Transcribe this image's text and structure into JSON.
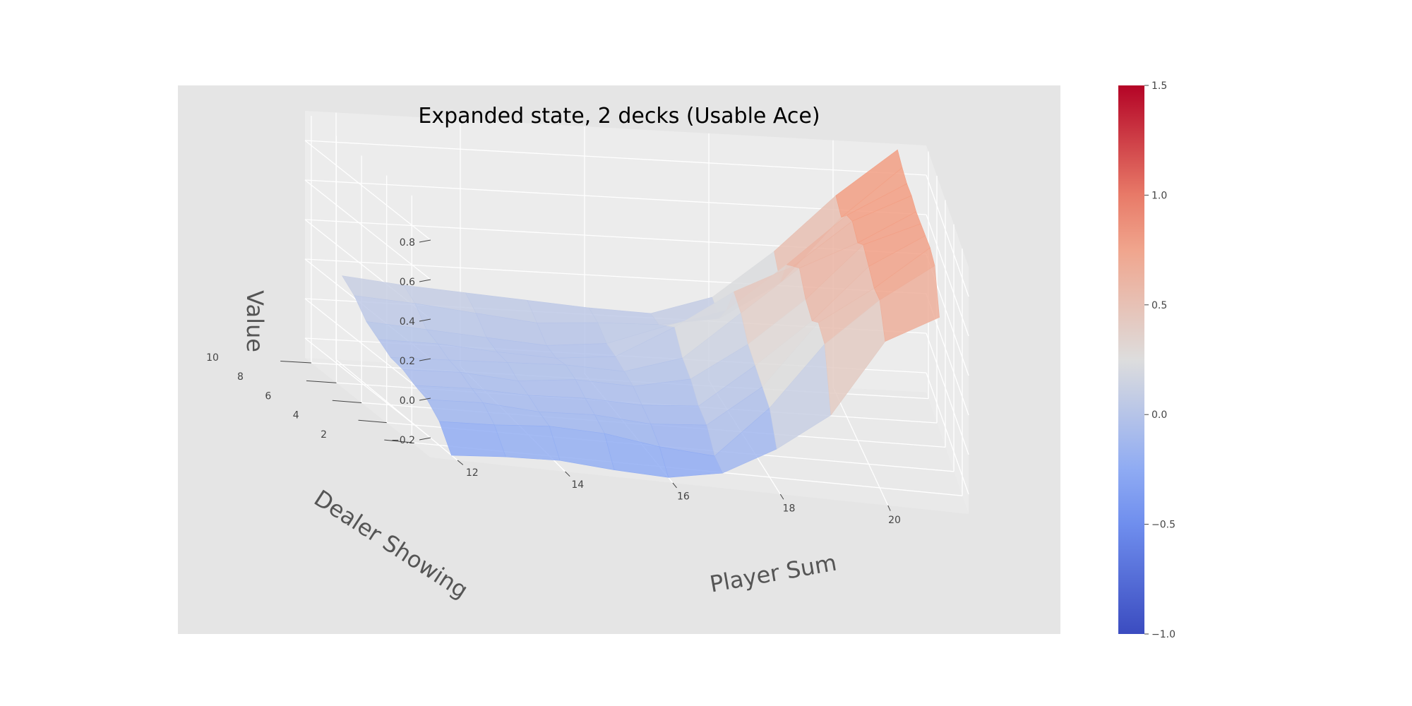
{
  "chart_data": {
    "type": "surface3d",
    "title": "Expanded state, 2 decks (Usable Ace)",
    "xlabel": "Player Sum",
    "ylabel": "Dealer Showing",
    "zlabel": "Value",
    "x": [
      12,
      13,
      14,
      15,
      16,
      17,
      18,
      19,
      20,
      21
    ],
    "y": [
      1,
      2,
      3,
      4,
      5,
      6,
      7,
      8,
      9,
      10
    ],
    "z": [
      [
        -0.3,
        -0.28,
        -0.27,
        -0.29,
        -0.3,
        -0.25,
        -0.1,
        0.1,
        0.5,
        0.65
      ],
      [
        -0.18,
        -0.17,
        -0.15,
        -0.16,
        -0.2,
        -0.22,
        0.05,
        0.4,
        0.65,
        0.85
      ],
      [
        -0.12,
        -0.11,
        -0.13,
        -0.12,
        -0.14,
        -0.12,
        0.1,
        0.45,
        0.65,
        0.88
      ],
      [
        -0.1,
        -0.09,
        -0.1,
        -0.09,
        -0.1,
        -0.08,
        0.15,
        0.4,
        0.7,
        0.88
      ],
      [
        -0.07,
        -0.06,
        -0.08,
        -0.05,
        -0.06,
        0.0,
        0.2,
        0.45,
        0.75,
        0.88
      ],
      [
        -0.06,
        -0.05,
        -0.04,
        -0.03,
        -0.04,
        0.05,
        0.3,
        0.55,
        0.7,
        0.88
      ],
      [
        -0.02,
        -0.02,
        -0.04,
        -0.05,
        -0.02,
        0.15,
        0.35,
        0.5,
        0.75,
        0.9
      ],
      [
        0.02,
        0.0,
        -0.02,
        -0.04,
        -0.01,
        0.1,
        0.2,
        0.45,
        0.72,
        0.9
      ],
      [
        0.1,
        0.08,
        0.05,
        0.02,
        0.04,
        0.05,
        0.1,
        0.3,
        0.65,
        0.92
      ],
      [
        0.15,
        0.12,
        0.1,
        0.08,
        0.06,
        0.05,
        0.15,
        0.4,
        0.7,
        0.95
      ]
    ],
    "xticks": [
      12,
      14,
      16,
      18,
      20
    ],
    "yticks": [
      2,
      4,
      6,
      8,
      10
    ],
    "zticks": [
      -0.2,
      0.0,
      0.2,
      0.4,
      0.6,
      0.8
    ],
    "xtick_labels": [
      "12",
      "14",
      "16",
      "18",
      "20"
    ],
    "ytick_labels": [
      "2",
      "4",
      "6",
      "8",
      "10"
    ],
    "ztick_labels": [
      "−0.2",
      "0.0",
      "0.2",
      "0.4",
      "0.6",
      "0.8"
    ],
    "xlim": [
      11.5,
      21.5
    ],
    "ylim": [
      0.5,
      10.5
    ],
    "zlim": [
      -0.3,
      0.95
    ],
    "colormap": "coolwarm",
    "color_range": [
      -1.0,
      1.5
    ],
    "colorbar_ticks": [
      -1.0,
      -0.5,
      0.0,
      0.5,
      1.0,
      1.5
    ],
    "colorbar_tick_labels": [
      "−1.0",
      "−0.5",
      "0.0",
      "0.5",
      "1.0",
      "1.5"
    ],
    "grid": true
  }
}
